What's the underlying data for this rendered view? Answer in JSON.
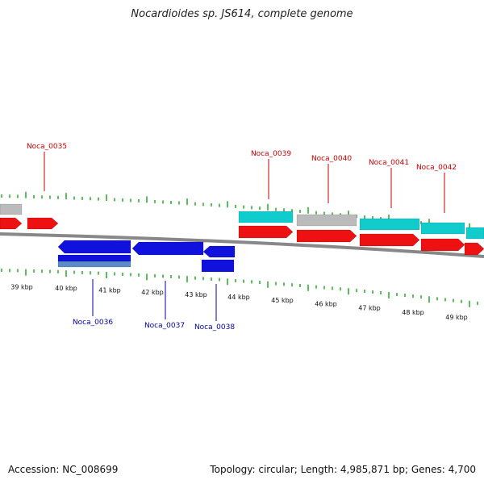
{
  "title": "Nocardioides sp. JS614, complete genome",
  "footer": {
    "accession": "Accession: NC_008699",
    "summary": "Topology: circular; Length: 4,985,871 bp; Genes: 4,700"
  },
  "colors": {
    "forward_gene": "#ee1111",
    "reverse_gene": "#1111dd",
    "reverse_gene_light": "#5a8cc8",
    "cyan_feature": "#11cccc",
    "gray_feature": "#bbbbbb",
    "backbone": "#888888",
    "tick": "#22aa22",
    "label_forward": "#cc0000",
    "label_reverse": "#0000aa"
  },
  "scale_labels": [
    "39 kbp",
    "40 kbp",
    "41 kbp",
    "42 kbp",
    "43 kbp",
    "44 kbp",
    "45 kbp",
    "46 kbp",
    "47 kbp",
    "48 kbp",
    "49 kbp"
  ],
  "gene_labels_forward": [
    "Noca_0035",
    "Noca_0039",
    "Noca_0040",
    "Noca_0041",
    "Noca_0042"
  ],
  "gene_labels_reverse": [
    "Noca_0036",
    "Noca_0037",
    "Noca_0038"
  ]
}
